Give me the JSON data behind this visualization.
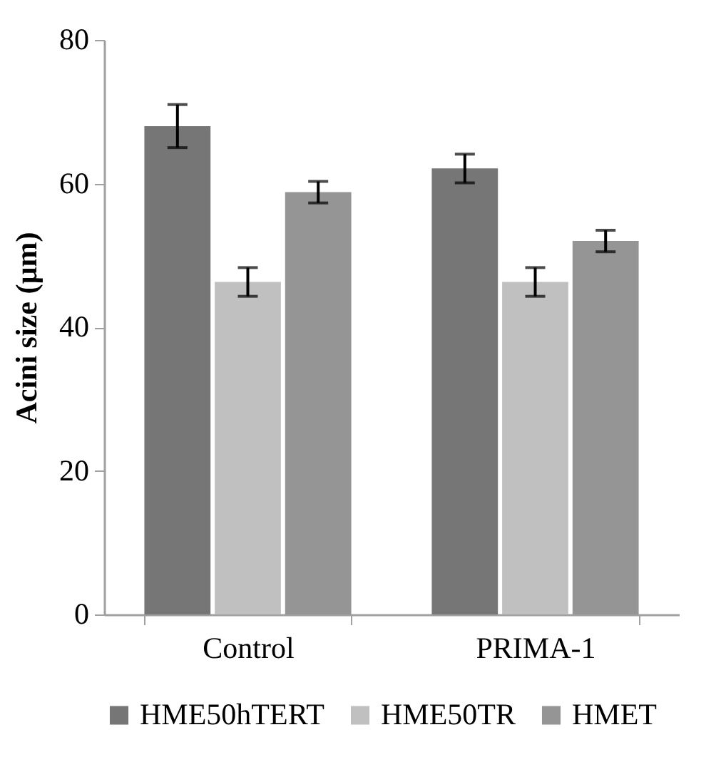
{
  "chart_data": {
    "type": "bar",
    "ylabel": "Acini size  (µm)",
    "categories": [
      "Control",
      "PRIMA-1"
    ],
    "series": [
      {
        "name": "HME50hTERT",
        "color": "#767676",
        "values": [
          68,
          62.1
        ],
        "errors": [
          3,
          2
        ]
      },
      {
        "name": "HME50TR",
        "color": "#c0c0c0",
        "values": [
          46.3,
          46.3
        ],
        "errors": [
          2,
          2
        ]
      },
      {
        "name": "HMET",
        "color": "#959595",
        "values": [
          58.8,
          52
        ],
        "errors": [
          1.5,
          1.5
        ]
      }
    ],
    "ylim": [
      0,
      80
    ],
    "yticks": [
      0,
      20,
      40,
      60,
      80
    ],
    "grid": false,
    "legend": "bottom"
  }
}
